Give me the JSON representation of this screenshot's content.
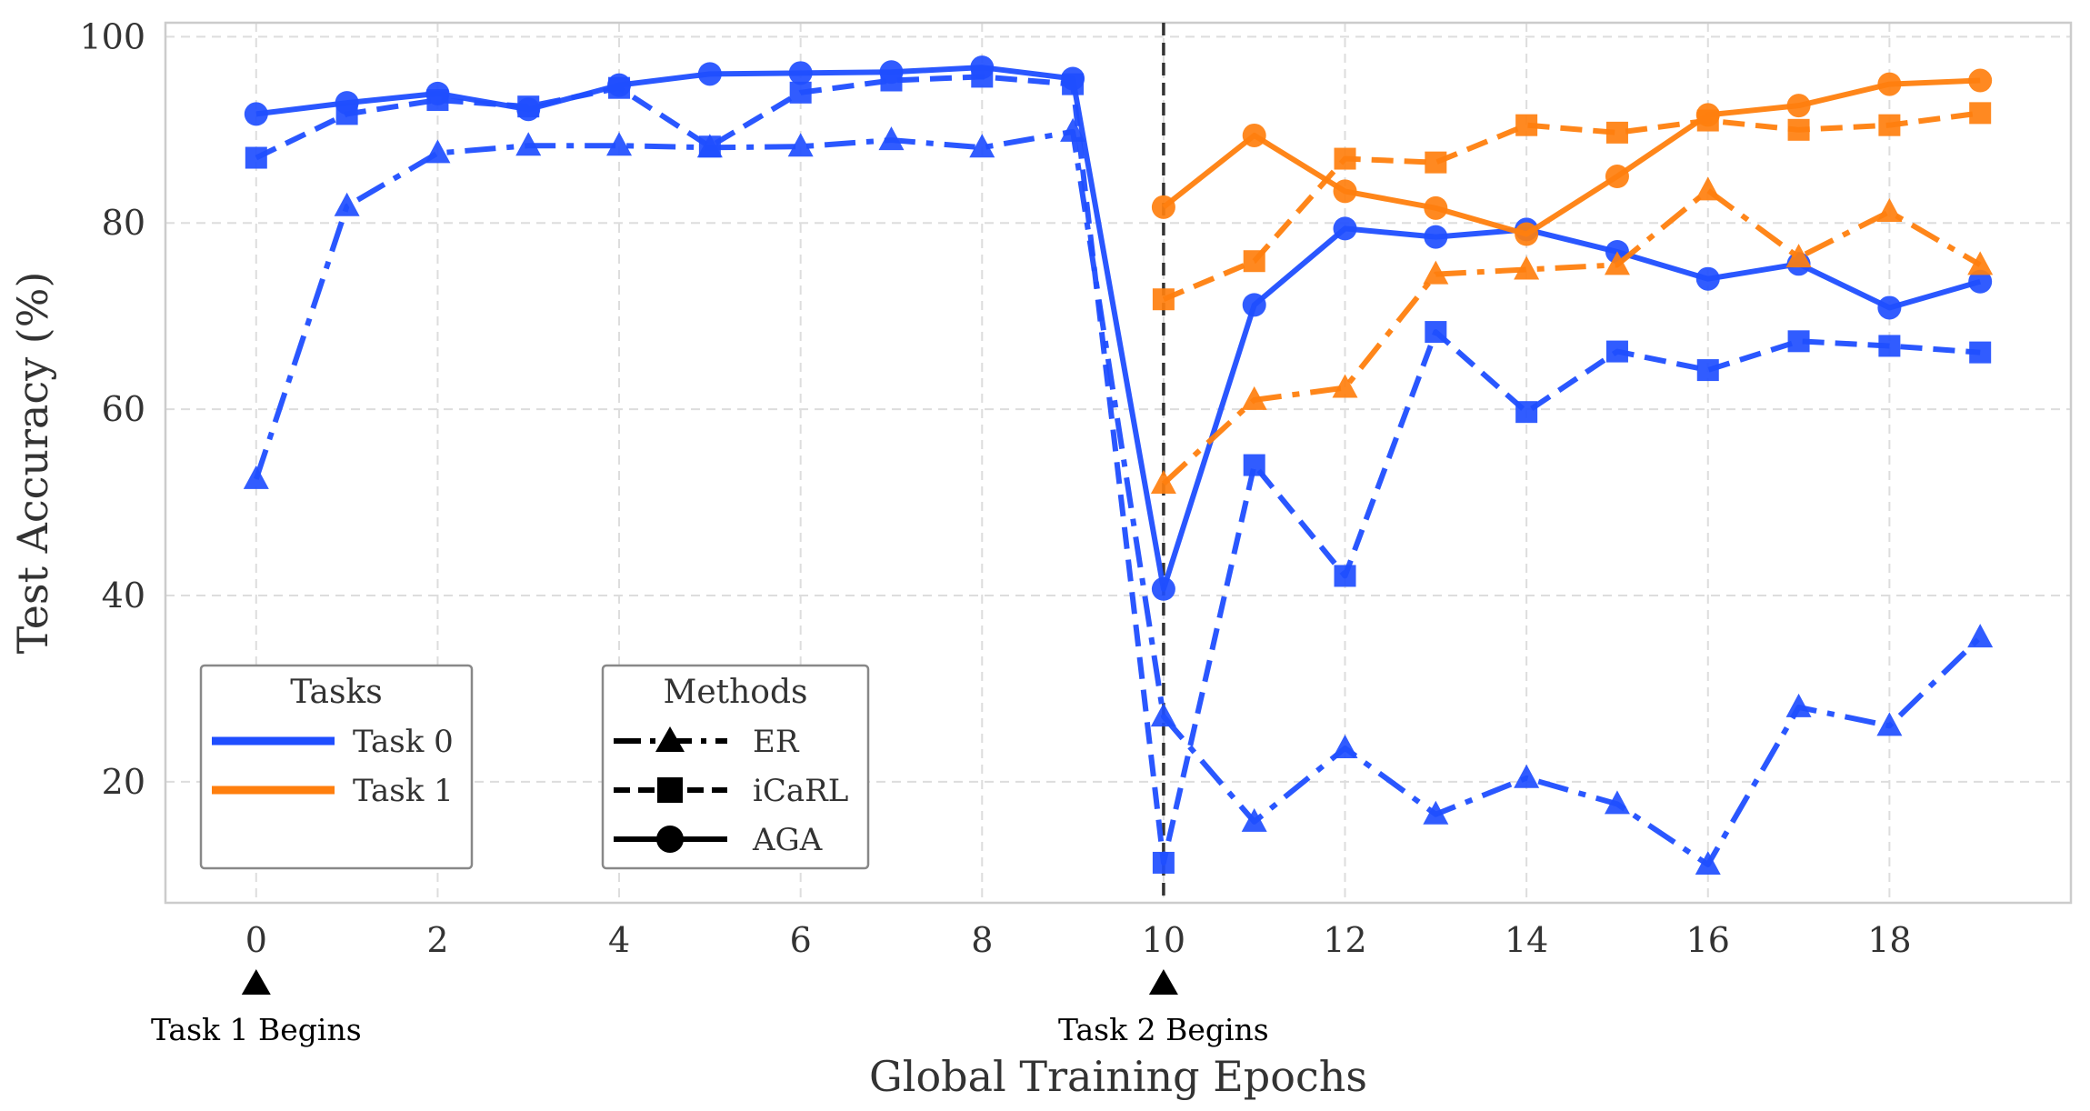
{
  "chart_data": {
    "type": "line",
    "xlabel": "Global Training Epochs",
    "ylabel": "Test Accuracy (%)",
    "xlim": [
      -1,
      20
    ],
    "ylim": [
      7,
      101.5
    ],
    "xticks": [
      0,
      2,
      4,
      6,
      8,
      10,
      12,
      14,
      16,
      18
    ],
    "yticks": [
      20,
      40,
      60,
      80,
      100
    ],
    "grid": true,
    "task_boundary_x": 10,
    "annotations": [
      {
        "x": 0,
        "text": "Task 1 Begins"
      },
      {
        "x": 10,
        "text": "Task 2 Begins"
      }
    ],
    "colors": {
      "task0": "#1f4eff",
      "task1": "#ff7f0e"
    },
    "legend_tasks": {
      "title": "Tasks",
      "placement": "lower-left",
      "entries": [
        {
          "label": "Task 0",
          "color": "#1f4eff"
        },
        {
          "label": "Task 1",
          "color": "#ff7f0e"
        }
      ]
    },
    "legend_methods": {
      "title": "Methods",
      "placement": "lower-center-left",
      "entries": [
        {
          "label": "ER",
          "marker": "triangle",
          "dash": "dashdot"
        },
        {
          "label": "iCaRL",
          "marker": "square",
          "dash": "dashed"
        },
        {
          "label": "AGA",
          "marker": "circle",
          "dash": "solid"
        }
      ]
    },
    "series": [
      {
        "task": "Task 0",
        "method": "ER",
        "color": "#1f4eff",
        "marker": "triangle",
        "dash": "dashdot",
        "x": [
          0,
          1,
          2,
          3,
          4,
          5,
          6,
          7,
          8,
          9,
          10,
          11,
          12,
          13,
          14,
          15,
          16,
          17,
          18,
          19
        ],
        "values": [
          52.5,
          81.8,
          87.5,
          88.3,
          88.3,
          88.1,
          88.2,
          88.9,
          88.1,
          89.8,
          27,
          15.7,
          23.6,
          16.5,
          20.4,
          17.6,
          11.1,
          28,
          26,
          35.5
        ]
      },
      {
        "task": "Task 0",
        "method": "iCaRL",
        "color": "#1f4eff",
        "marker": "square",
        "dash": "dashed",
        "x": [
          0,
          1,
          2,
          3,
          4,
          5,
          6,
          7,
          8,
          9,
          10,
          11,
          12,
          13,
          14,
          15,
          16,
          17,
          18,
          19
        ],
        "values": [
          87,
          91.7,
          93.2,
          92.5,
          94.5,
          88.2,
          94,
          95.3,
          95.7,
          94.9,
          11.3,
          54,
          42.1,
          68.3,
          59.7,
          66.2,
          64.2,
          67.3,
          66.8,
          66.1
        ]
      },
      {
        "task": "Task 0",
        "method": "AGA",
        "color": "#1f4eff",
        "marker": "circle",
        "dash": "solid",
        "x": [
          0,
          1,
          2,
          3,
          4,
          5,
          6,
          7,
          8,
          9,
          10,
          11,
          12,
          13,
          14,
          15,
          16,
          17,
          18,
          19
        ],
        "values": [
          91.7,
          92.9,
          93.9,
          92.2,
          94.8,
          96,
          96.1,
          96.2,
          96.7,
          95.5,
          40.7,
          71.2,
          79.4,
          78.5,
          79.3,
          76.9,
          74,
          75.6,
          70.9,
          73.7
        ]
      },
      {
        "task": "Task 1",
        "method": "ER",
        "color": "#ff7f0e",
        "marker": "triangle",
        "dash": "dashdot",
        "x": [
          10,
          11,
          12,
          13,
          14,
          15,
          16,
          17,
          18,
          19
        ],
        "values": [
          52,
          61,
          62.3,
          74.5,
          75,
          75.5,
          83.5,
          76.3,
          81.2,
          75.5
        ]
      },
      {
        "task": "Task 1",
        "method": "iCaRL",
        "color": "#ff7f0e",
        "marker": "square",
        "dash": "dashed",
        "x": [
          10,
          11,
          12,
          13,
          14,
          15,
          16,
          17,
          18,
          19
        ],
        "values": [
          71.8,
          75.9,
          86.9,
          86.5,
          90.5,
          89.7,
          91,
          90,
          90.5,
          91.8
        ]
      },
      {
        "task": "Task 1",
        "method": "AGA",
        "color": "#ff7f0e",
        "marker": "circle",
        "dash": "solid",
        "x": [
          10,
          11,
          12,
          13,
          14,
          15,
          16,
          17,
          18,
          19
        ],
        "values": [
          81.7,
          89.4,
          83.4,
          81.6,
          78.8,
          85,
          91.6,
          92.6,
          94.9,
          95.3
        ]
      }
    ]
  }
}
